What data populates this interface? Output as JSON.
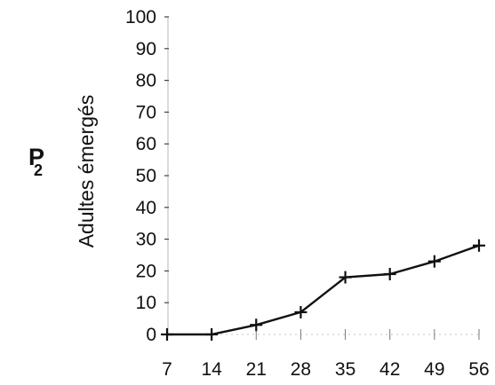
{
  "chart_data": {
    "type": "line",
    "panel_label": "P",
    "panel_label_sub": "2",
    "ylabel": "Adultes émergés",
    "xlabel": "",
    "x": [
      7,
      14,
      21,
      28,
      35,
      42,
      49,
      56
    ],
    "x_tick_labels": [
      "7",
      "14",
      "21",
      "28",
      "35",
      "42",
      "49",
      "56"
    ],
    "y_tick_labels": [
      "0",
      "10",
      "20",
      "30",
      "40",
      "50",
      "60",
      "70",
      "80",
      "90",
      "100"
    ],
    "ylim": [
      0,
      100
    ],
    "grid": false,
    "series": [
      {
        "values": [
          0,
          0,
          3,
          7,
          18,
          19,
          23,
          28
        ],
        "marker": "plus",
        "color": "#111111"
      }
    ]
  }
}
